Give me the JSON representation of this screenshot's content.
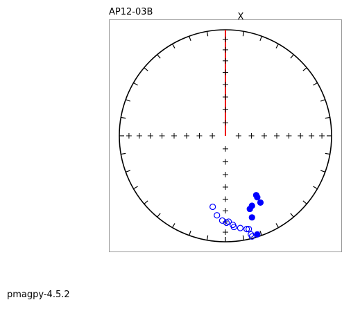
{
  "chart_data": {
    "type": "stereonet",
    "title": "AP12-03B",
    "axis_label": "X",
    "xlim": [
      -1,
      1
    ],
    "ylim": [
      -1,
      1
    ],
    "lower_hemisphere": {
      "color": "#0000ff",
      "filled": true,
      "x": [
        0.29,
        0.3,
        0.33,
        0.25,
        0.23,
        0.25,
        0.3
      ],
      "y": [
        -0.56,
        -0.58,
        -0.63,
        -0.66,
        -0.69,
        -0.77,
        -0.93
      ]
    },
    "upper_hemisphere": {
      "color": "#0000ff",
      "filled": false,
      "x": [
        -0.12,
        -0.08,
        -0.03,
        0.01,
        0.03,
        0.07,
        0.08,
        0.14,
        0.2,
        0.22,
        0.24,
        0.25
      ],
      "y": [
        -0.67,
        -0.75,
        -0.8,
        -0.82,
        -0.81,
        -0.84,
        -0.86,
        -0.87,
        -0.88,
        -0.88,
        -0.93,
        -0.95
      ]
    }
  },
  "footer": "pmagpy-4.5.2"
}
